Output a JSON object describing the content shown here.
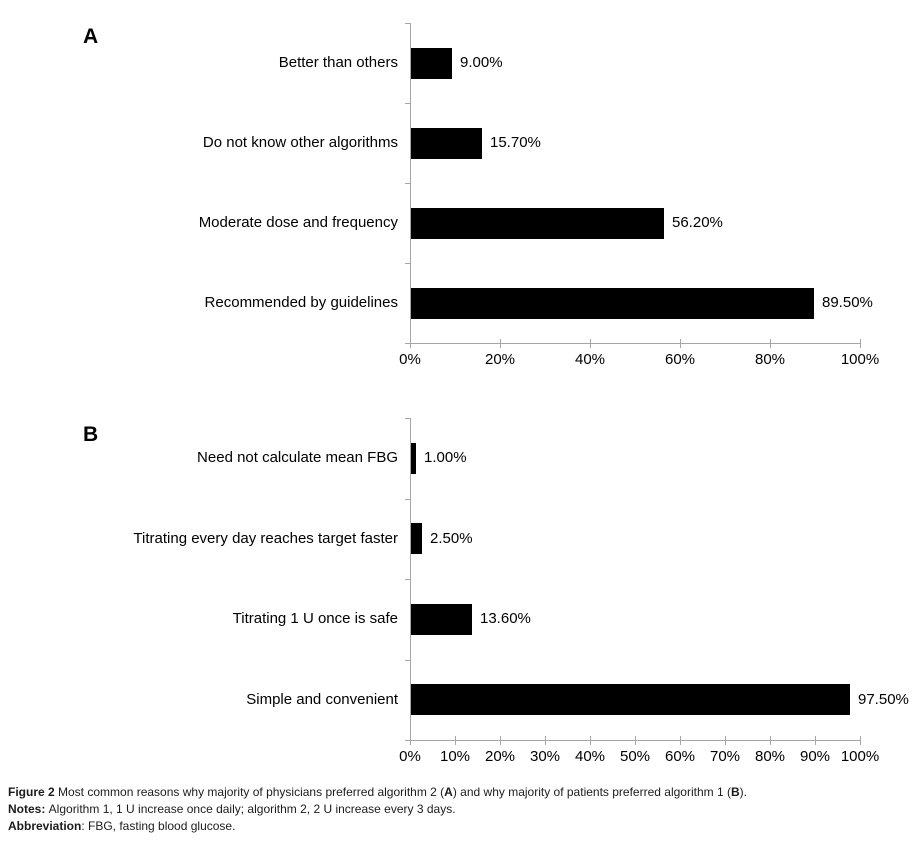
{
  "colors": {
    "bar": "#000000",
    "axis": "#a6a6a6",
    "text": "#000000",
    "background": "#ffffff"
  },
  "chart_data": [
    {
      "type": "bar",
      "orientation": "horizontal",
      "panel_label": "A",
      "categories": [
        "Better than others",
        "Do not know other algorithms",
        "Moderate dose and frequency",
        "Recommended by guidelines"
      ],
      "values": [
        9.0,
        15.7,
        56.2,
        89.5
      ],
      "value_labels": [
        "9.00%",
        "15.70%",
        "56.20%",
        "89.50%"
      ],
      "title": "",
      "xlabel": "",
      "ylabel": "",
      "xlim": [
        0,
        100
      ],
      "x_tick_values": [
        0,
        20,
        40,
        60,
        80,
        100
      ],
      "x_tick_labels": [
        "0%",
        "20%",
        "40%",
        "60%",
        "80%",
        "100%"
      ],
      "grid": false,
      "legend": "none"
    },
    {
      "type": "bar",
      "orientation": "horizontal",
      "panel_label": "B",
      "categories": [
        "Need not calculate mean FBG",
        "Titrating every day reaches target faster",
        "Titrating 1 U once is safe",
        "Simple and convenient"
      ],
      "values": [
        1.0,
        2.5,
        13.6,
        97.5
      ],
      "value_labels": [
        "1.00%",
        "2.50%",
        "13.60%",
        "97.50%"
      ],
      "title": "",
      "xlabel": "",
      "ylabel": "",
      "xlim": [
        0,
        100
      ],
      "x_tick_values": [
        0,
        10,
        20,
        30,
        40,
        50,
        60,
        70,
        80,
        90,
        100
      ],
      "x_tick_labels": [
        "0%",
        "10%",
        "20%",
        "30%",
        "40%",
        "50%",
        "60%",
        "70%",
        "80%",
        "90%",
        "100%"
      ],
      "grid": false,
      "legend": "none"
    }
  ],
  "caption_lines": [
    {
      "segments": [
        {
          "text": "Figure 2 ",
          "bold": true
        },
        {
          "text": "Most common reasons why majority of physicians preferred algorithm 2 (",
          "bold": false
        },
        {
          "text": "A",
          "bold": true
        },
        {
          "text": ") and why majority of patients preferred algorithm 1 (",
          "bold": false
        },
        {
          "text": "B",
          "bold": true
        },
        {
          "text": ").",
          "bold": false
        }
      ]
    },
    {
      "segments": [
        {
          "text": "Notes: ",
          "bold": true
        },
        {
          "text": "Algorithm 1, 1 U increase once daily; algorithm 2, 2 U increase every 3 days.",
          "bold": false
        }
      ]
    },
    {
      "segments": [
        {
          "text": "Abbreviation",
          "bold": true
        },
        {
          "text": ": FBG, fasting blood glucose.",
          "bold": false
        }
      ]
    }
  ]
}
